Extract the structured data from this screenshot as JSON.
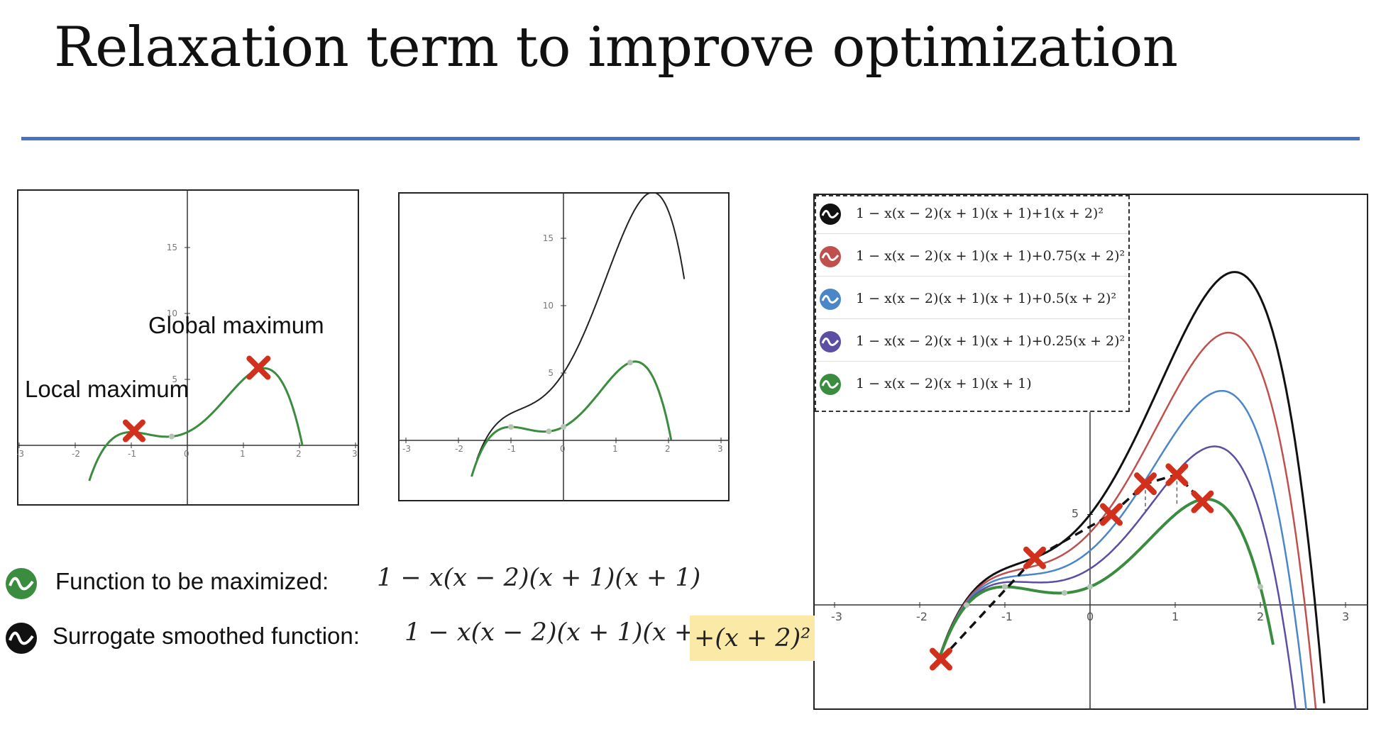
{
  "slide": {
    "title": "Relaxation term to improve optimization",
    "accent_color": "#4472c4"
  },
  "left_plot": {
    "annotation_global": "Global maximum",
    "annotation_local": "Local maximum",
    "x_ticks": [
      "-3",
      "-2",
      "-1",
      "0",
      "1",
      "2",
      "3"
    ],
    "y_ticks": [
      "5",
      "10",
      "15"
    ]
  },
  "middle_plot": {
    "x_ticks": [
      "-3",
      "-2",
      "-1",
      "0",
      "1",
      "2",
      "3"
    ],
    "y_ticks": [
      "5",
      "10",
      "15"
    ]
  },
  "right_plot": {
    "x_ticks": [
      "-3",
      "-2",
      "-1",
      "0",
      "1",
      "2",
      "3"
    ],
    "y_ticks": [
      "5"
    ],
    "legend": [
      {
        "icon": "black-curve-icon",
        "color": "#111111",
        "text": "1 − x(x − 2)(x + 1)(x + 1)+1(x + 2)²"
      },
      {
        "icon": "red-curve-icon",
        "color": "#c0504d",
        "text": "1 − x(x − 2)(x + 1)(x + 1)+0.75(x + 2)²"
      },
      {
        "icon": "blue-curve-icon",
        "color": "#4a86c8",
        "text": "1 − x(x − 2)(x + 1)(x + 1)+0.5(x + 2)²"
      },
      {
        "icon": "purple-curve-icon",
        "color": "#5b4ea3",
        "text": "1 − x(x − 2)(x + 1)(x + 1)+0.25(x + 2)²"
      },
      {
        "icon": "green-curve-icon",
        "color": "#3a8c3f",
        "text": "1 − x(x − 2)(x + 1)(x + 1)"
      }
    ]
  },
  "functions": {
    "target_label": "Function to be maximized:",
    "target_eq": "1 − x(x − 2)(x + 1)(x + 1)",
    "surrogate_label": "Surrogate smoothed function:",
    "surrogate_eq": "1 − x(x − 2)(x + 1)(x + 1)",
    "surrogate_extra": "+(x + 2)²"
  },
  "colors": {
    "green": "#3a8c3f",
    "black": "#111111",
    "red_mark": "#d0301c",
    "highlight": "#fbe9a7"
  }
}
